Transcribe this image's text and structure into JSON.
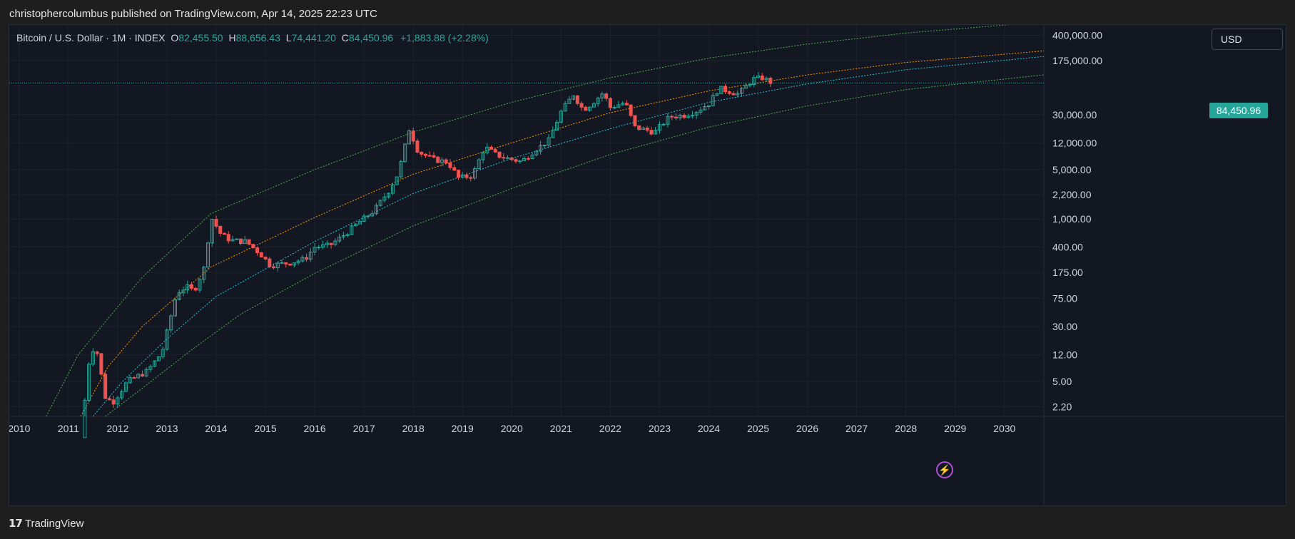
{
  "header": {
    "publisher": "christophercolumbus published on TradingView.com, Apr 14, 2025 22:23 UTC"
  },
  "legend": {
    "symbol": "Bitcoin / U.S. Dollar · 1M · INDEX",
    "open_label": "O",
    "open": "82,455.50",
    "high_label": "H",
    "high": "88,656.43",
    "low_label": "L",
    "low": "74,441.20",
    "close_label": "C",
    "close": "84,450.96",
    "change": "+1,883.88 (+2.28%)"
  },
  "currency": "USD",
  "last_price": "84,450.96",
  "footer": {
    "brand": "TradingView",
    "logo": "tradingview-logo"
  },
  "colors": {
    "up": "#26a69a",
    "down": "#ef5350",
    "band_outer": "#4caf50",
    "band_mid": "#ff9800",
    "band_inner": "#26c6da",
    "background": "#131722"
  },
  "chart_data": {
    "type": "candlestick",
    "scale": "log",
    "y_ticks": [
      "400,000.00",
      "175,000.00",
      "30,000.00",
      "12,000.00",
      "5,000.00",
      "2,200.00",
      "1,000.00",
      "400.00",
      "175.00",
      "75.00",
      "30.00",
      "12.00",
      "5.00",
      "2.20"
    ],
    "y_tick_values": [
      400000,
      175000,
      30000,
      12000,
      5000,
      2200,
      1000,
      400,
      175,
      75,
      30,
      12,
      5,
      2.2
    ],
    "x_ticks": [
      "2010",
      "2011",
      "2012",
      "2013",
      "2014",
      "2015",
      "2016",
      "2017",
      "2018",
      "2019",
      "2020",
      "2021",
      "2022",
      "2023",
      "2024",
      "2025",
      "2026",
      "2027",
      "2028",
      "2029",
      "2030"
    ],
    "x_range": [
      2009.8,
      2030.8
    ],
    "y_range": [
      1.6,
      560000
    ],
    "last_close": 84450.96,
    "price_path": [
      [
        2011.25,
        0.8
      ],
      [
        2011.45,
        15
      ],
      [
        2011.58,
        13
      ],
      [
        2011.75,
        3
      ],
      [
        2011.9,
        2.5
      ],
      [
        2012.2,
        5
      ],
      [
        2012.6,
        7
      ],
      [
        2012.9,
        13
      ],
      [
        2013.2,
        90
      ],
      [
        2013.4,
        110
      ],
      [
        2013.55,
        95
      ],
      [
        2013.75,
        200
      ],
      [
        2013.9,
        1050
      ],
      [
        2014.1,
        600
      ],
      [
        2014.3,
        500
      ],
      [
        2014.6,
        480
      ],
      [
        2014.9,
        320
      ],
      [
        2015.1,
        220
      ],
      [
        2015.5,
        240
      ],
      [
        2015.8,
        270
      ],
      [
        2016.0,
        400
      ],
      [
        2016.3,
        420
      ],
      [
        2016.6,
        600
      ],
      [
        2016.9,
        900
      ],
      [
        2017.2,
        1300
      ],
      [
        2017.5,
        2500
      ],
      [
        2017.7,
        4500
      ],
      [
        2017.92,
        19000
      ],
      [
        2018.1,
        9000
      ],
      [
        2018.4,
        7000
      ],
      [
        2018.7,
        6400
      ],
      [
        2018.92,
        3800
      ],
      [
        2019.2,
        4100
      ],
      [
        2019.45,
        10500
      ],
      [
        2019.7,
        8000
      ],
      [
        2019.92,
        7200
      ],
      [
        2020.2,
        6500
      ],
      [
        2020.45,
        9300
      ],
      [
        2020.75,
        13000
      ],
      [
        2021.0,
        33000
      ],
      [
        2021.25,
        58000
      ],
      [
        2021.45,
        35000
      ],
      [
        2021.6,
        42000
      ],
      [
        2021.85,
        61000
      ],
      [
        2022.0,
        38000
      ],
      [
        2022.3,
        45000
      ],
      [
        2022.5,
        20000
      ],
      [
        2022.9,
        17000
      ],
      [
        2023.2,
        28000
      ],
      [
        2023.5,
        29500
      ],
      [
        2023.75,
        34000
      ],
      [
        2024.0,
        43000
      ],
      [
        2024.2,
        71000
      ],
      [
        2024.6,
        59000
      ],
      [
        2024.9,
        96000
      ],
      [
        2025.1,
        100000
      ],
      [
        2025.28,
        84450.96
      ]
    ],
    "bands": [
      {
        "name": "upper",
        "points": [
          [
            2010.55,
            1.6
          ],
          [
            2011.2,
            12
          ],
          [
            2012.5,
            150
          ],
          [
            2013.9,
            1200
          ],
          [
            2016.0,
            5000
          ],
          [
            2018.0,
            17000
          ],
          [
            2020.0,
            45000
          ],
          [
            2022.0,
            100000
          ],
          [
            2024.0,
            190000
          ],
          [
            2026.0,
            300000
          ],
          [
            2028.0,
            430000
          ],
          [
            2030.8,
            620000
          ]
        ]
      },
      {
        "name": "mid",
        "points": [
          [
            2011.25,
            1.6
          ],
          [
            2011.8,
            8
          ],
          [
            2012.5,
            30
          ],
          [
            2013.9,
            210
          ],
          [
            2016.0,
            1050
          ],
          [
            2018.0,
            4300
          ],
          [
            2020.0,
            12000
          ],
          [
            2022.0,
            32000
          ],
          [
            2024.0,
            65000
          ],
          [
            2026.0,
            110000
          ],
          [
            2028.0,
            165000
          ],
          [
            2030.8,
            240000
          ]
        ]
      },
      {
        "name": "inner",
        "points": [
          [
            2011.5,
            1.6
          ],
          [
            2012.1,
            5
          ],
          [
            2013.0,
            20
          ],
          [
            2014.0,
            80
          ],
          [
            2016.0,
            480
          ],
          [
            2018.0,
            2300
          ],
          [
            2020.0,
            7200
          ],
          [
            2022.0,
            19000
          ],
          [
            2024.0,
            45000
          ],
          [
            2026.0,
            82000
          ],
          [
            2028.0,
            130000
          ],
          [
            2030.8,
            200000
          ]
        ]
      },
      {
        "name": "lower",
        "points": [
          [
            2011.75,
            1.6
          ],
          [
            2012.5,
            4
          ],
          [
            2013.5,
            14
          ],
          [
            2014.5,
            45
          ],
          [
            2016.0,
            170
          ],
          [
            2018.0,
            800
          ],
          [
            2020.0,
            2700
          ],
          [
            2022.0,
            8200
          ],
          [
            2024.0,
            20000
          ],
          [
            2026.0,
            40000
          ],
          [
            2028.0,
            68000
          ],
          [
            2030.8,
            110000
          ]
        ]
      }
    ]
  }
}
